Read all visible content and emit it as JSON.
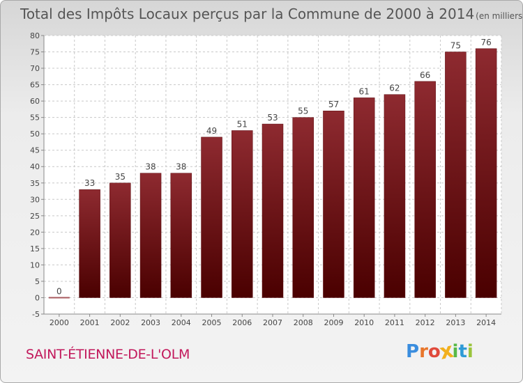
{
  "chart_data": {
    "type": "bar",
    "title": "Total des Impôts Locaux perçus par la Commune de 2000 à 2014",
    "unit": "(en milliers d'€)",
    "categories": [
      "2000",
      "2001",
      "2002",
      "2003",
      "2004",
      "2005",
      "2006",
      "2007",
      "2008",
      "2009",
      "2010",
      "2011",
      "2012",
      "2013",
      "2014"
    ],
    "values": [
      0,
      33,
      35,
      38,
      38,
      49,
      51,
      53,
      55,
      57,
      61,
      62,
      66,
      75,
      76
    ],
    "ylim": [
      -5,
      80
    ],
    "yticks": [
      -5,
      0,
      5,
      10,
      15,
      20,
      25,
      30,
      35,
      40,
      45,
      50,
      55,
      60,
      65,
      70,
      75,
      80
    ],
    "grid": true,
    "legend": "none",
    "bar_color": "#7a1a1f"
  },
  "commune": "SAINT-ÉTIENNE-DE-L'OLM",
  "logo": {
    "letters": [
      "P",
      "r",
      "o",
      "x",
      "i",
      "t",
      "i"
    ],
    "colors": [
      "#3a8dde",
      "#e8762b",
      "#e04a3c",
      "#f2b01e",
      "#58b947",
      "#2f9bd6",
      "#9ac43c"
    ]
  }
}
